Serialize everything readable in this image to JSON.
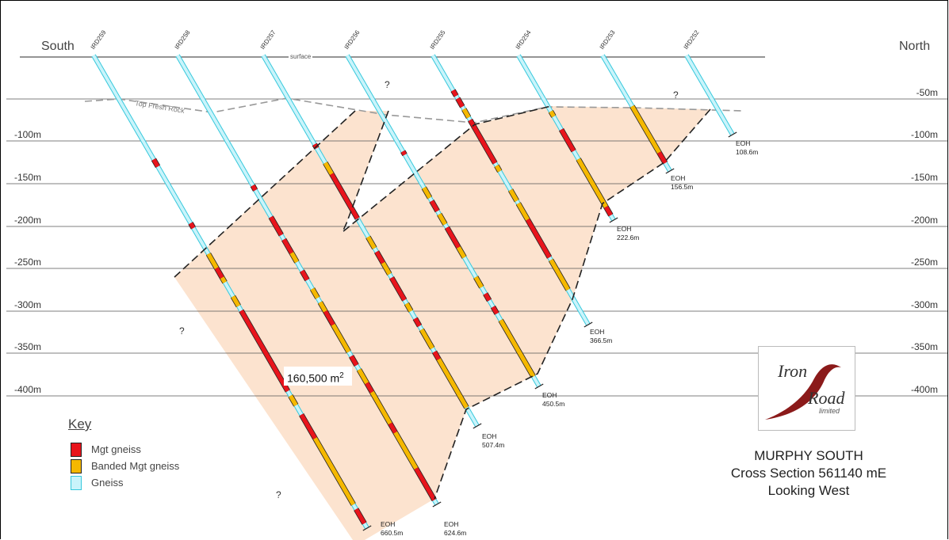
{
  "labels": {
    "south": "South",
    "north": "North",
    "surface": "surface",
    "top_fresh_rock": "Top Fresh Rock",
    "area": "160,500 m",
    "area_unit_sup": "2",
    "question_mark": "?"
  },
  "depth_labels": [
    "-50m",
    "-100m",
    "-150m",
    "-200m",
    "-250m",
    "-300m",
    "-350m",
    "-400m"
  ],
  "holes": [
    {
      "name": "IRD259",
      "eoh": "EOH",
      "depth": "660.5m"
    },
    {
      "name": "IRD258",
      "eoh": "EOH",
      "depth": "624.6m"
    },
    {
      "name": "IRD257",
      "eoh": "EOH",
      "depth": "507.4m"
    },
    {
      "name": "IRD256",
      "eoh": "EOH",
      "depth": "450.5m"
    },
    {
      "name": "IRD255",
      "eoh": "EOH",
      "depth": "366.5m"
    },
    {
      "name": "IRD254",
      "eoh": "EOH",
      "depth": "222.6m"
    },
    {
      "name": "IRD253",
      "eoh": "EOH",
      "depth": "156.5m"
    },
    {
      "name": "IRD252",
      "eoh": "EOH",
      "depth": "108.6m"
    }
  ],
  "key": {
    "title": "Key",
    "items": [
      {
        "label": "Mgt gneiss",
        "color": "#e8141c"
      },
      {
        "label": "Banded Mgt gneiss",
        "color": "#f5b800"
      },
      {
        "label": "Gneiss",
        "color": "#c9f4fb"
      }
    ]
  },
  "logo": {
    "line1": "Iron",
    "line2": "Road",
    "line3": "limited"
  },
  "title": {
    "line1": "MURPHY SOUTH",
    "line2": "Cross Section  561140 mE",
    "line3": "Looking West"
  },
  "colors": {
    "ore_zone_fill": "#fce3cf",
    "gneiss": "#c9f4fb",
    "gneiss_border": "#36c8dc",
    "mgt_gneiss": "#e8141c",
    "banded_mgt_gneiss": "#f5b800",
    "level_line": "#555555",
    "boundary_line": "#222222",
    "fresh_rock_line": "#999999"
  }
}
